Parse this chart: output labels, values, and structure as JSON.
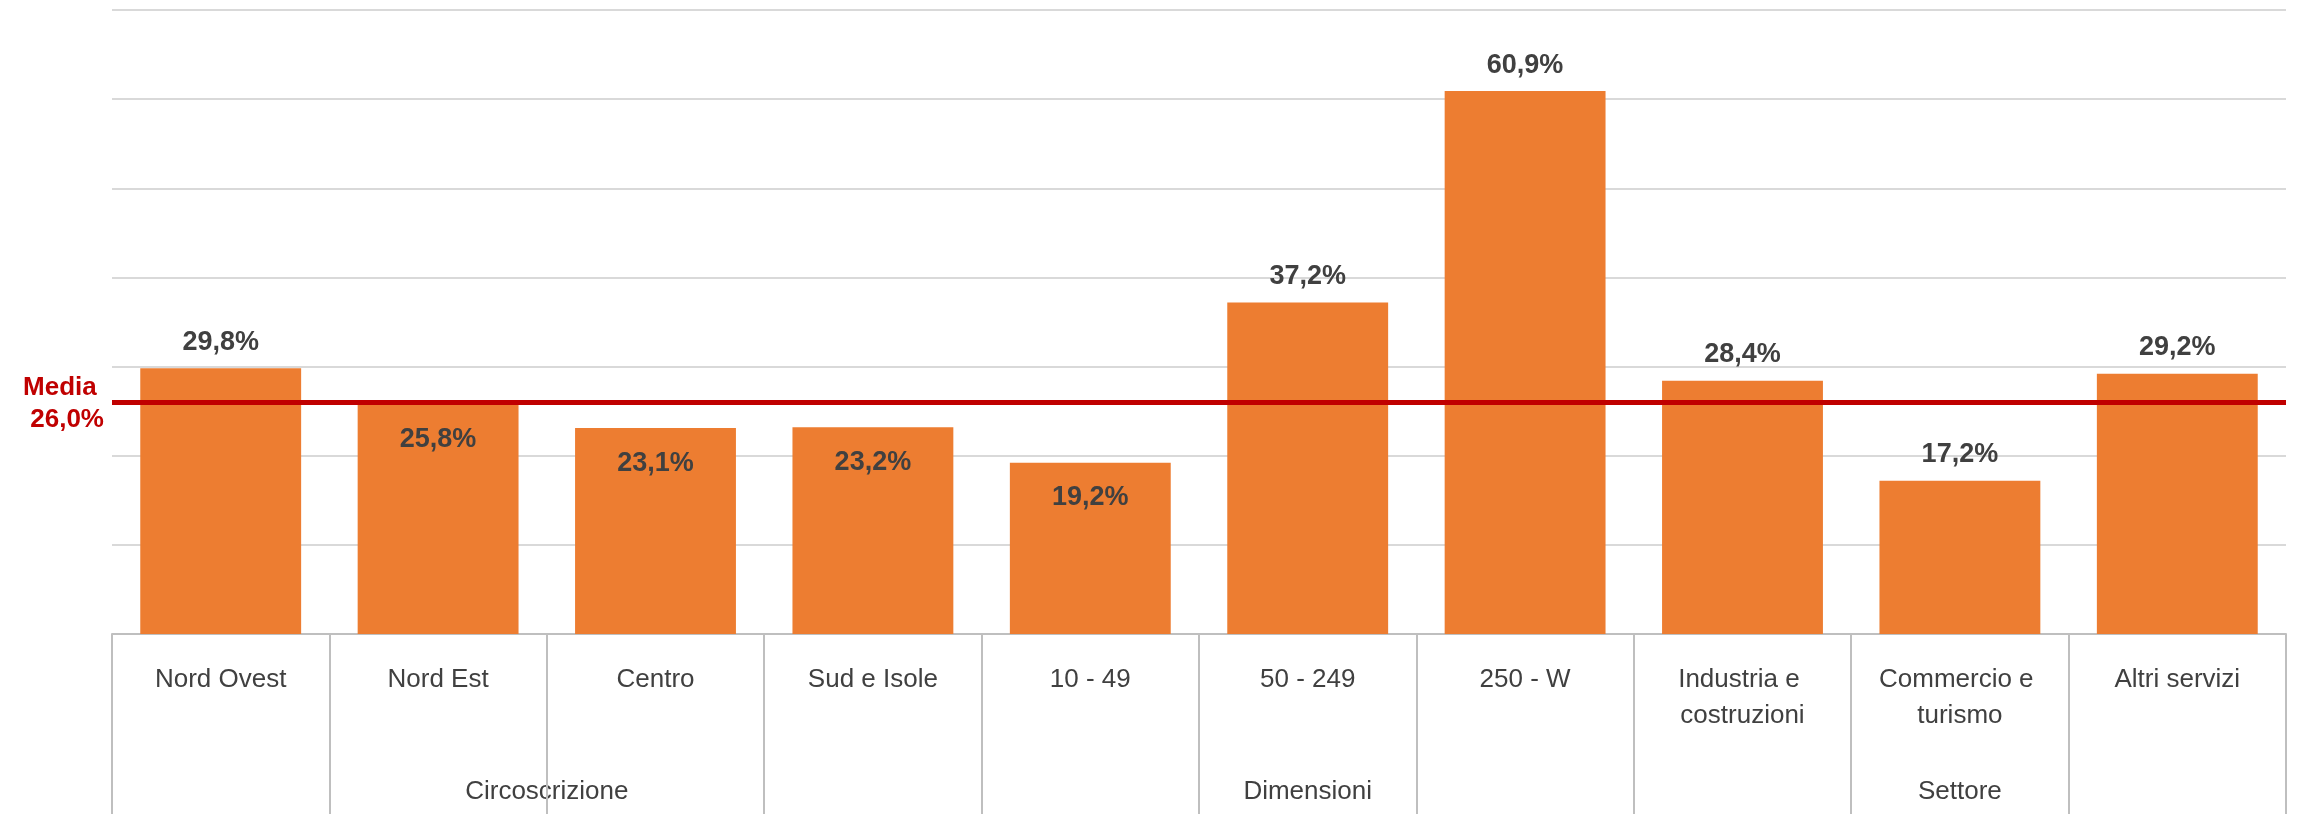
{
  "chart_data": {
    "type": "bar",
    "categories": [
      "Nord Ovest",
      "Nord Est",
      "Centro",
      "Sud e Isole",
      "10 - 49",
      "50 - 249",
      "250 - W",
      "Industria e costruzioni",
      "Commercio e turismo",
      "Altri servizi"
    ],
    "values": [
      29.8,
      25.8,
      23.1,
      23.2,
      19.2,
      37.2,
      60.9,
      28.4,
      17.2,
      29.2
    ],
    "value_labels": [
      "29,8%",
      "25,8%",
      "23,1%",
      "23,2%",
      "19,2%",
      "37,2%",
      "60,9%",
      "28,4%",
      "17,2%",
      "29,2%"
    ],
    "color": "#ed7d31",
    "ylim": [
      0,
      70
    ],
    "yticks": [
      {
        "value": 0,
        "label": null
      },
      {
        "value": 10,
        "label": null
      },
      {
        "value": 20,
        "label": null
      },
      {
        "value": 30,
        "label": null
      },
      {
        "value": 40,
        "label": null
      },
      {
        "value": 50,
        "label": null
      },
      {
        "value": 60,
        "label": null
      },
      {
        "value": 70,
        "label": null
      }
    ],
    "grid": "y",
    "tick_labels": "x",
    "ref_lines": [
      {
        "axis": "y",
        "value": 26.0,
        "label": "Media 26,0%",
        "color": "#c00000"
      }
    ],
    "annotations": [
      "Circoscrizione",
      "Dimensioni",
      "Settore"
    ]
  }
}
